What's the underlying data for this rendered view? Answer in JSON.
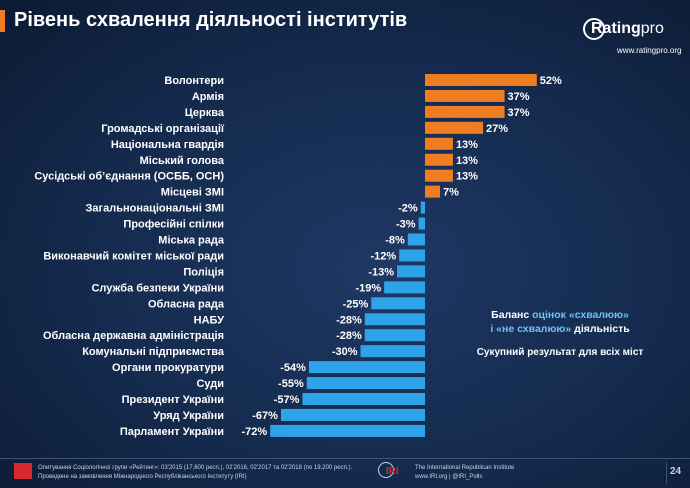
{
  "header": {
    "title": "Рівень схвалення діяльності інститутів"
  },
  "logo": {
    "brand_main": "Rating",
    "brand_suffix": "pro",
    "url": "www.ratingpro.org"
  },
  "colors": {
    "positive": "#ef7d22",
    "negative": "#2ea3e8",
    "accent_text": "#6ec3f2"
  },
  "chart_data": {
    "type": "bar",
    "orientation": "horizontal",
    "categories": [
      "Волонтери",
      "Армія",
      "Церква",
      "Громадські організації",
      "Національна гвардія",
      "Міський голова",
      "Сусідські об’єднання (ОСББ, ОСН)",
      "Місцеві ЗМІ",
      "Загальнонаціональні ЗМІ",
      "Професійні спілки",
      "Міська рада",
      "Виконавчий комітет міської ради",
      "Поліція",
      "Служба безпеки України",
      "Обласна рада",
      "НАБУ",
      "Обласна державна адміністрація",
      "Комунальні підприємства",
      "Органи прокуратури",
      "Суди",
      "Президент України",
      "Уряд України",
      "Парламент України"
    ],
    "values": [
      52,
      37,
      37,
      27,
      13,
      13,
      13,
      7,
      -2,
      -3,
      -8,
      -12,
      -13,
      -19,
      -25,
      -28,
      -28,
      -30,
      -54,
      -55,
      -57,
      -67,
      -72
    ],
    "labels": [
      "52%",
      "37%",
      "37%",
      "27%",
      "13%",
      "13%",
      "13%",
      "7%",
      "-2%",
      "-3%",
      "-8%",
      "-12%",
      "-13%",
      "-19%",
      "-25%",
      "-28%",
      "-28%",
      "-30%",
      "-54%",
      "-55%",
      "-57%",
      "-67%",
      "-72%"
    ],
    "title": "Рівень схвалення діяльності інститутів",
    "xlabel": "",
    "ylabel": "",
    "grid": false
  },
  "legend": {
    "line1_a": "Баланс ",
    "line1_b": "оцінок «схвалюю»",
    "line2_a": "і «не схвалюю» ",
    "line2_b": "діяльність",
    "subtitle": "Сукупний результат для всіх міст"
  },
  "footer": {
    "left_line1": "Опитування Соціологічної групи «Рейтинг»: 03'2015 (17,600 респ.), 02'2016, 02'2017 та 02'2018 (по 19,200 респ.).",
    "left_line2": "Проведене на замовлення Міжнародного Республіканського Інституту (IRI)",
    "iri_logo_text": "IRI",
    "right_line1": "The International Republican Institute",
    "right_line2": "www.IRI.org | @IRI_Polls",
    "page_number": "24"
  }
}
